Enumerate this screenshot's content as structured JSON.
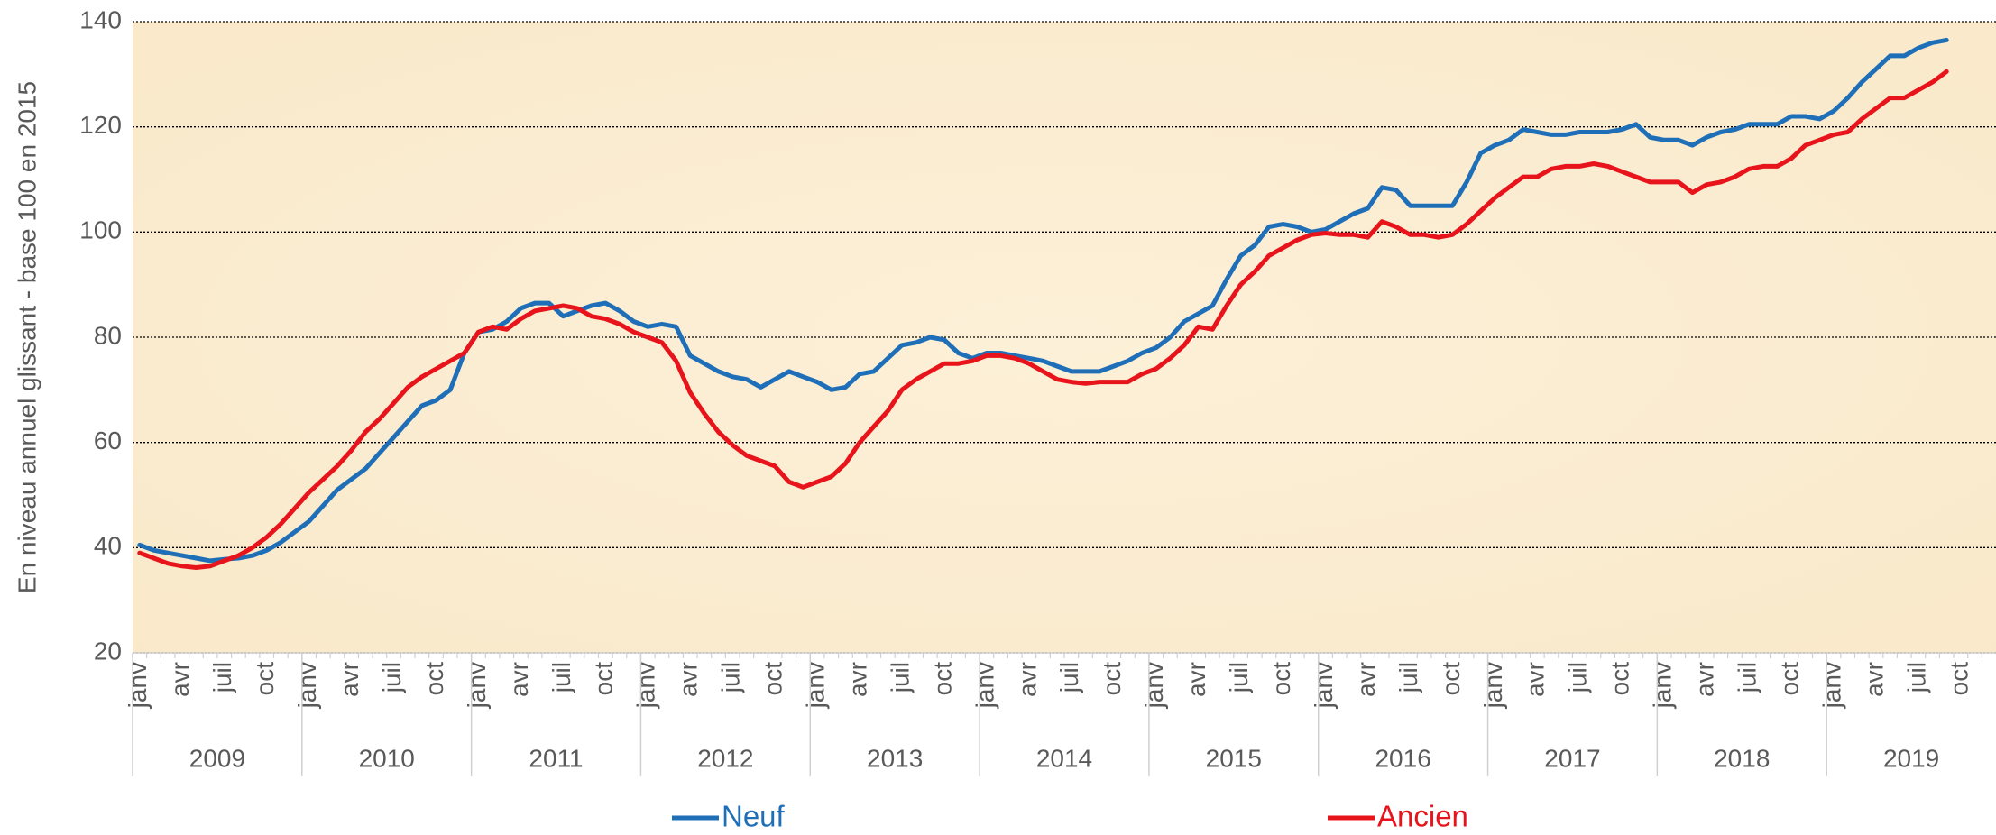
{
  "chart_data": {
    "type": "line",
    "y_label": "En niveau annuel glissant - base 100 en 2015",
    "categories": [
      "janv",
      null,
      null,
      "avr",
      null,
      null,
      "juil",
      null,
      null,
      "oct",
      null,
      null,
      "janv",
      null,
      null,
      "avr",
      null,
      null,
      "juil",
      null,
      null,
      "oct",
      null,
      null,
      "janv",
      null,
      null,
      "avr",
      null,
      null,
      "juil",
      null,
      null,
      "oct",
      null,
      null,
      "janv",
      null,
      null,
      "avr",
      null,
      null,
      "juil",
      null,
      null,
      "oct",
      null,
      null,
      "janv",
      null,
      null,
      "avr",
      null,
      null,
      "juil",
      null,
      null,
      "oct",
      null,
      null,
      "janv",
      null,
      null,
      "avr",
      null,
      null,
      "juil",
      null,
      null,
      "oct",
      null,
      null,
      "janv",
      null,
      null,
      "avr",
      null,
      null,
      "juil",
      null,
      null,
      "oct",
      null,
      null,
      "janv",
      null,
      null,
      "avr",
      null,
      null,
      "juil",
      null,
      null,
      "oct",
      null,
      null,
      "janv",
      null,
      null,
      "avr",
      null,
      null,
      "juil",
      null,
      null,
      "oct",
      null,
      null,
      "janv",
      null,
      null,
      "avr",
      null,
      null,
      "juil",
      null,
      null,
      "oct",
      null,
      null,
      "janv",
      null,
      null,
      "avr",
      null,
      null,
      "juil",
      null,
      null,
      "oct",
      null,
      null
    ],
    "years": [
      "2009",
      "2010",
      "2011",
      "2012",
      "2013",
      "2014",
      "2015",
      "2016",
      "2017",
      "2018",
      "2019"
    ],
    "series": [
      {
        "name": "Neuf",
        "color": "#1f6fb8",
        "values": [
          40.5,
          39.5,
          39,
          38.5,
          38,
          37.5,
          37.8,
          38,
          38.5,
          39.5,
          41,
          43,
          45,
          48,
          51,
          53,
          55,
          58,
          61,
          64,
          67,
          68,
          70,
          77,
          81,
          81.5,
          83,
          85.5,
          86.5,
          86.5,
          84,
          85,
          86,
          86.5,
          85,
          83,
          82,
          82.5,
          82,
          76.5,
          75,
          73.5,
          72.5,
          72,
          70.5,
          72,
          73.5,
          72.5,
          71.5,
          70,
          70.5,
          73,
          73.5,
          76,
          78.5,
          79,
          80,
          79.5,
          77,
          76,
          77,
          77,
          76.5,
          76,
          75.5,
          74.5,
          73.5,
          73.5,
          73.5,
          74.5,
          75.5,
          77,
          78,
          80,
          83,
          84.5,
          86,
          91,
          95.5,
          97.5,
          101,
          101.5,
          101,
          100,
          100.5,
          102,
          103.5,
          104.5,
          108.5,
          108,
          105,
          105,
          105,
          105,
          109.5,
          115,
          116.5,
          117.5,
          119.5,
          119,
          118.5,
          118.5,
          119,
          119,
          119,
          119.5,
          120.5,
          118,
          117.5,
          117.5,
          116.5,
          118,
          119,
          119.5,
          120.5,
          120.5,
          120.5,
          122,
          122,
          121.5,
          123,
          125.5,
          128.5,
          131,
          133.5,
          133.5,
          135,
          136,
          136.5,
          null,
          null,
          null
        ]
      },
      {
        "name": "Ancien",
        "color": "#e8141b",
        "values": [
          39,
          38,
          37,
          36.5,
          36.2,
          36.5,
          37.5,
          38.5,
          40,
          42,
          44.5,
          47.5,
          50.5,
          53,
          55.5,
          58.5,
          62,
          64.5,
          67.5,
          70.5,
          72.5,
          74,
          75.5,
          77,
          81,
          82,
          81.5,
          83.5,
          85,
          85.5,
          86,
          85.5,
          84,
          83.5,
          82.5,
          81,
          80,
          79,
          75.5,
          69.5,
          65.5,
          62,
          59.5,
          57.5,
          56.5,
          55.5,
          52.5,
          51.5,
          52.5,
          53.5,
          56,
          60,
          63,
          66,
          70,
          72,
          73.5,
          75,
          75,
          75.5,
          76.5,
          76.5,
          76,
          75,
          73.5,
          72,
          71.5,
          71.2,
          71.5,
          71.5,
          71.5,
          73,
          74,
          76,
          78.5,
          82,
          81.5,
          86,
          90,
          92.5,
          95.5,
          97,
          98.5,
          99.5,
          99.8,
          99.5,
          99.5,
          99,
          102,
          101,
          99.5,
          99.5,
          99,
          99.5,
          101.5,
          104,
          106.5,
          108.5,
          110.5,
          110.5,
          112,
          112.5,
          112.5,
          113,
          112.5,
          111.5,
          110.5,
          109.5,
          109.5,
          109.5,
          107.5,
          109,
          109.5,
          110.5,
          112,
          112.5,
          112.5,
          114,
          116.5,
          117.5,
          118.5,
          119,
          121.5,
          123.5,
          125.5,
          125.5,
          127,
          128.5,
          130.5,
          null,
          null,
          null
        ]
      }
    ],
    "ylim": [
      20,
      140
    ],
    "yticks": [
      20,
      40,
      60,
      80,
      100,
      120,
      140
    ],
    "grid": true
  }
}
